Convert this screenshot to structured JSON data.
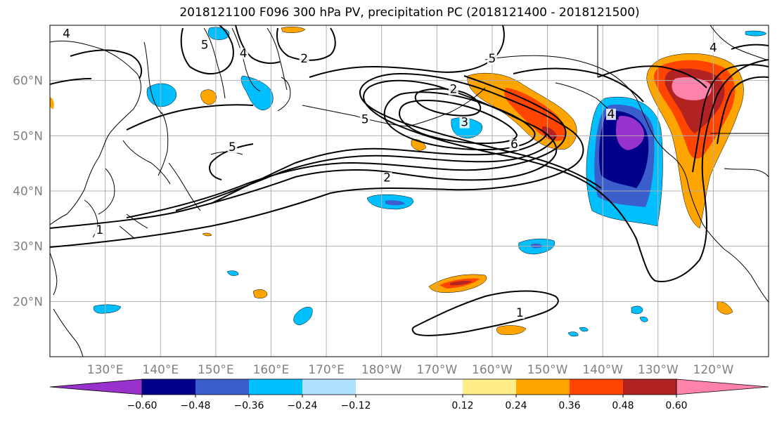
{
  "figure": {
    "title": "2018121100 F096 300 hPa PV, precipitation PC (2018121400 - 2018121500)"
  },
  "map": {
    "projection": "equirectangular",
    "lon_range": [
      120,
      250
    ],
    "lat_range": [
      10,
      70
    ],
    "lat_ticks": [
      {
        "value": 20,
        "label": "20°N"
      },
      {
        "value": 30,
        "label": "30°N"
      },
      {
        "value": 40,
        "label": "40°N"
      },
      {
        "value": 50,
        "label": "50°N"
      },
      {
        "value": 60,
        "label": "60°N"
      }
    ],
    "lon_ticks": [
      {
        "value": 130,
        "label": "130°E"
      },
      {
        "value": 140,
        "label": "140°E"
      },
      {
        "value": 150,
        "label": "150°E"
      },
      {
        "value": 160,
        "label": "160°E"
      },
      {
        "value": 170,
        "label": "170°E"
      },
      {
        "value": 180,
        "label": "180°W"
      },
      {
        "value": 190,
        "label": "170°W"
      },
      {
        "value": 200,
        "label": "160°W"
      },
      {
        "value": 210,
        "label": "150°W"
      },
      {
        "value": 220,
        "label": "140°W"
      },
      {
        "value": 230,
        "label": "130°W"
      },
      {
        "value": 240,
        "label": "120°W"
      }
    ],
    "grid": true,
    "colors": {
      "grid": "#b0b0b0",
      "coast": "#000000",
      "contour": "#000000"
    },
    "pv_contour_labels": [
      {
        "text": "4",
        "lon": 123,
        "lat": 68
      },
      {
        "text": "5",
        "lon": 148,
        "lat": 66
      },
      {
        "text": "4",
        "lon": 155,
        "lat": 64.5
      },
      {
        "text": "2",
        "lon": 166,
        "lat": 63.5
      },
      {
        "text": "5",
        "lon": 200,
        "lat": 63.5
      },
      {
        "text": "2",
        "lon": 193,
        "lat": 58
      },
      {
        "text": "5",
        "lon": 177,
        "lat": 52.5
      },
      {
        "text": "3",
        "lon": 195,
        "lat": 52
      },
      {
        "text": "6",
        "lon": 204,
        "lat": 48
      },
      {
        "text": "2",
        "lon": 181,
        "lat": 42
      },
      {
        "text": "1",
        "lon": 129,
        "lat": 32.5
      },
      {
        "text": "5",
        "lon": 153,
        "lat": 47.5
      },
      {
        "text": "1",
        "lon": 205,
        "lat": 17.5
      },
      {
        "text": "4",
        "lon": 221.5,
        "lat": 53.5
      },
      {
        "text": "4",
        "lon": 240,
        "lat": 65.5
      }
    ]
  },
  "colorbar": {
    "extend": "both",
    "levels": [
      -0.72,
      -0.6,
      -0.48,
      -0.36,
      -0.24,
      -0.12,
      0.12,
      0.24,
      0.36,
      0.48,
      0.6,
      0.72
    ],
    "colors": [
      "#9932cc",
      "#00008b",
      "#3a5fcd",
      "#00bfff",
      "#b0e2ff",
      "#ffffff",
      "#ffed8a",
      "#ffa500",
      "#ff4500",
      "#b22222",
      "#ff82ab"
    ],
    "tick_labels": [
      {
        "value": -0.6,
        "label": "−0.60"
      },
      {
        "value": -0.48,
        "label": "−0.48"
      },
      {
        "value": -0.36,
        "label": "−0.36"
      },
      {
        "value": -0.24,
        "label": "−0.24"
      },
      {
        "value": -0.12,
        "label": "−0.12"
      },
      {
        "value": 0.12,
        "label": "0.12"
      },
      {
        "value": 0.24,
        "label": "0.24"
      },
      {
        "value": 0.36,
        "label": "0.36"
      },
      {
        "value": 0.48,
        "label": "0.48"
      },
      {
        "value": 0.6,
        "label": "0.60"
      }
    ]
  }
}
